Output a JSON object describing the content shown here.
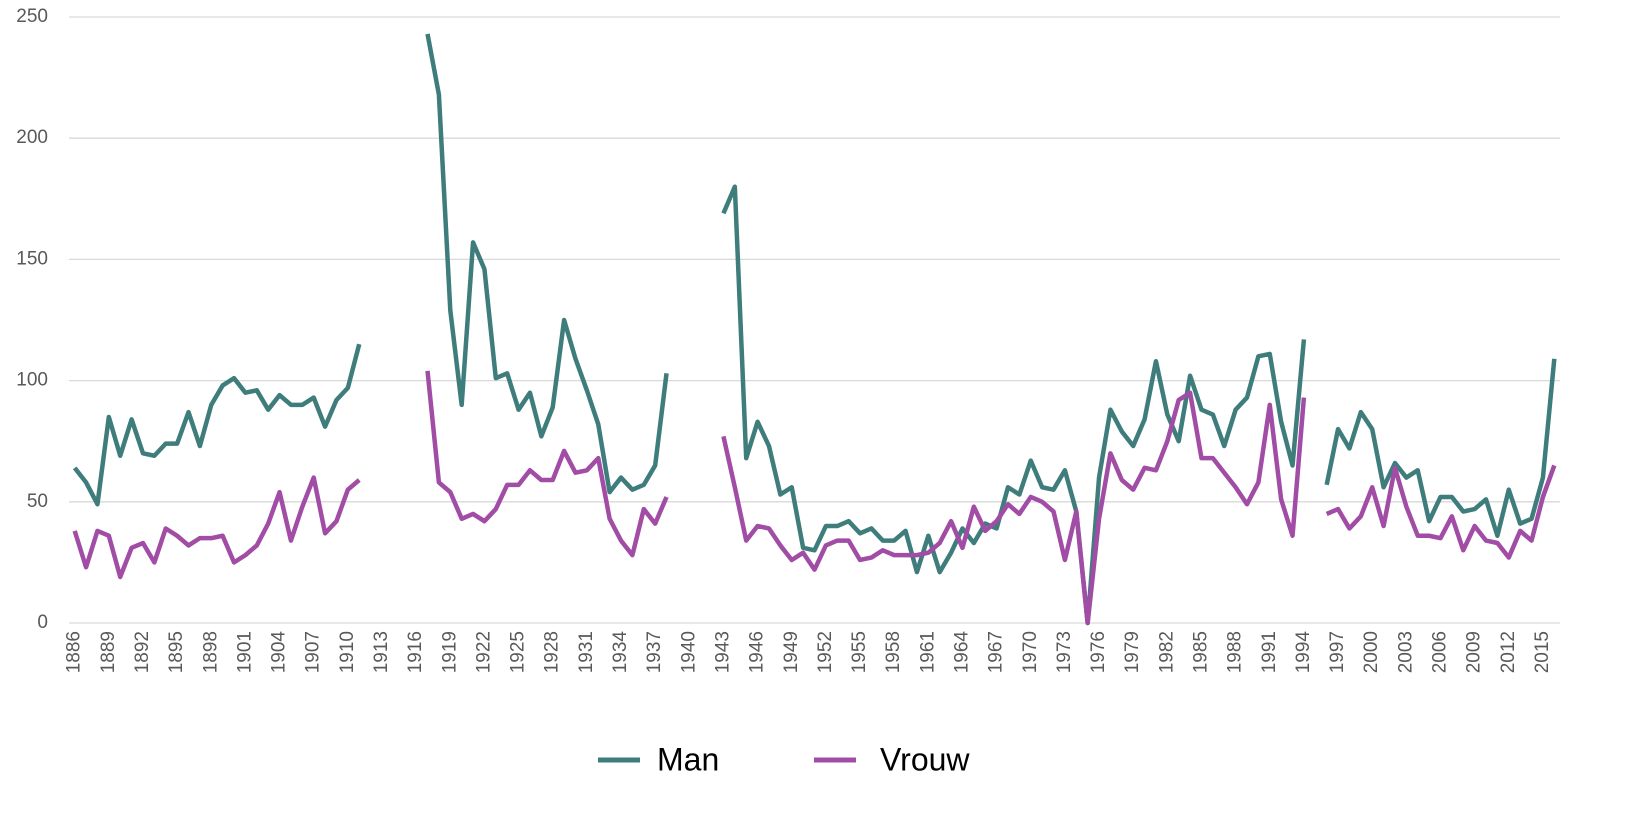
{
  "chart_data": {
    "type": "line",
    "categories": [
      "1886",
      null,
      null,
      "1889",
      null,
      null,
      "1892",
      null,
      null,
      "1895",
      null,
      null,
      "1898",
      null,
      null,
      "1901",
      null,
      null,
      "1904",
      null,
      null,
      "1907",
      null,
      null,
      "1910",
      null,
      null,
      "1913",
      null,
      null,
      "1916",
      null,
      null,
      "1919",
      null,
      null,
      "1922",
      null,
      null,
      "1925",
      null,
      null,
      "1928",
      null,
      null,
      "1931",
      null,
      null,
      "1934",
      null,
      null,
      "1937",
      null,
      null,
      "1940",
      null,
      null,
      "1943",
      null,
      null,
      "1946",
      null,
      null,
      "1949",
      null,
      null,
      "1952",
      null,
      null,
      "1955",
      null,
      null,
      "1958",
      null,
      null,
      "1961",
      null,
      null,
      "1964",
      null,
      null,
      "1967",
      null,
      null,
      "1970",
      null,
      null,
      "1973",
      null,
      null,
      "1976",
      null,
      null,
      "1979",
      null,
      null,
      "1982",
      null,
      null,
      "1985",
      null,
      null,
      "1988",
      null,
      null,
      "1991",
      null,
      null,
      "1994",
      null,
      null,
      "1997",
      null,
      null,
      "2000",
      null,
      null,
      "2003",
      null,
      null,
      "2006",
      null,
      null,
      "2009",
      null,
      null,
      "2012",
      null,
      null,
      "2015",
      null
    ],
    "series": [
      {
        "name": "Man",
        "color": "#3e7d7c",
        "values": [
          64,
          58,
          49,
          85,
          69,
          84,
          70,
          69,
          74,
          74,
          87,
          73,
          90,
          98,
          101,
          95,
          96,
          88,
          94,
          90,
          90,
          93,
          81,
          92,
          97,
          115,
          null,
          null,
          null,
          null,
          null,
          243,
          218,
          129,
          90,
          157,
          146,
          101,
          103,
          88,
          95,
          77,
          89,
          125,
          109,
          96,
          82,
          54,
          60,
          55,
          57,
          65,
          103,
          null,
          null,
          null,
          null,
          169,
          180,
          68,
          83,
          73,
          53,
          56,
          31,
          30,
          40,
          40,
          42,
          37,
          39,
          34,
          34,
          38,
          21,
          36,
          21,
          29,
          39,
          33,
          41,
          39,
          56,
          53,
          67,
          56,
          55,
          63,
          46,
          0,
          60,
          88,
          79,
          73,
          84,
          108,
          86,
          75,
          102,
          88,
          86,
          73,
          88,
          93,
          110,
          111,
          83,
          65,
          117,
          null,
          57,
          80,
          72,
          87,
          80,
          56,
          66,
          60,
          63,
          42,
          52,
          52,
          46,
          47,
          51,
          36,
          55,
          41,
          43,
          60,
          109
        ]
      },
      {
        "name": "Vrouw",
        "color": "#a14ca5",
        "values": [
          38,
          23,
          38,
          36,
          19,
          31,
          33,
          25,
          39,
          36,
          32,
          35,
          35,
          36,
          25,
          28,
          32,
          41,
          54,
          34,
          48,
          60,
          37,
          42,
          55,
          59,
          null,
          null,
          null,
          null,
          null,
          104,
          58,
          54,
          43,
          45,
          42,
          47,
          57,
          57,
          63,
          59,
          59,
          71,
          62,
          63,
          68,
          43,
          34,
          28,
          47,
          41,
          52,
          null,
          null,
          null,
          null,
          77,
          56,
          34,
          40,
          39,
          32,
          26,
          29,
          22,
          32,
          34,
          34,
          26,
          27,
          30,
          28,
          28,
          28,
          29,
          33,
          42,
          31,
          48,
          38,
          42,
          49,
          45,
          52,
          50,
          46,
          26,
          46,
          0,
          43,
          70,
          59,
          55,
          64,
          63,
          75,
          92,
          95,
          68,
          68,
          62,
          56,
          49,
          58,
          90,
          51,
          36,
          93,
          null,
          45,
          47,
          39,
          44,
          56,
          40,
          64,
          48,
          36,
          36,
          35,
          44,
          30,
          40,
          34,
          33,
          27,
          38,
          34,
          52,
          65
        ]
      }
    ],
    "ylim": [
      0,
      250
    ],
    "yticks": [
      0,
      50,
      100,
      150,
      200,
      250
    ],
    "grid": true,
    "legend": "bottom"
  }
}
